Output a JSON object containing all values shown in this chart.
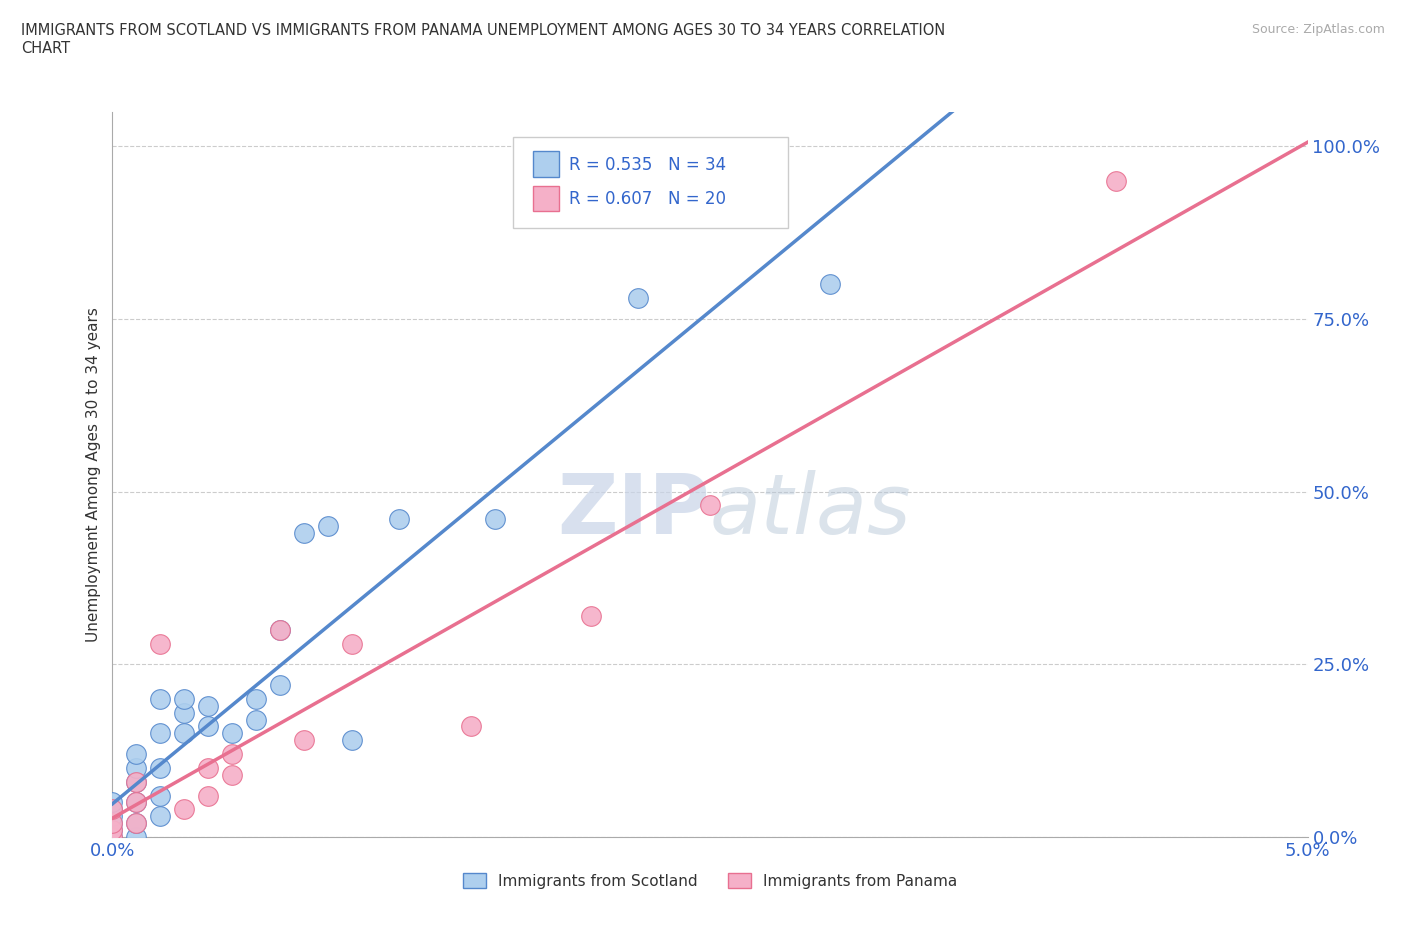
{
  "title": "IMMIGRANTS FROM SCOTLAND VS IMMIGRANTS FROM PANAMA UNEMPLOYMENT AMONG AGES 30 TO 34 YEARS CORRELATION\nCHART",
  "source_text": "Source: ZipAtlas.com",
  "ylabel": "Unemployment Among Ages 30 to 34 years",
  "xlim": [
    0,
    0.05
  ],
  "ylim": [
    0,
    1.05
  ],
  "x_ticks": [
    0.0,
    0.05
  ],
  "x_tick_labels": [
    "0.0%",
    "5.0%"
  ],
  "y_ticks": [
    0.0,
    0.25,
    0.5,
    0.75,
    1.0
  ],
  "y_tick_labels": [
    "0.0%",
    "25.0%",
    "50.0%",
    "75.0%",
    "100.0%"
  ],
  "scotland_color": "#aecfee",
  "panama_color": "#f5b0c8",
  "scotland_R": 0.535,
  "scotland_N": 34,
  "panama_R": 0.607,
  "panama_N": 20,
  "scotland_x": [
    0.0,
    0.0,
    0.0,
    0.0,
    0.0,
    0.0,
    0.001,
    0.001,
    0.001,
    0.001,
    0.001,
    0.001,
    0.002,
    0.002,
    0.002,
    0.002,
    0.002,
    0.003,
    0.003,
    0.003,
    0.004,
    0.004,
    0.005,
    0.006,
    0.006,
    0.007,
    0.007,
    0.008,
    0.009,
    0.01,
    0.012,
    0.016,
    0.022,
    0.03
  ],
  "scotland_y": [
    0.0,
    0.01,
    0.02,
    0.03,
    0.04,
    0.05,
    0.0,
    0.02,
    0.05,
    0.08,
    0.1,
    0.12,
    0.03,
    0.06,
    0.1,
    0.15,
    0.2,
    0.15,
    0.18,
    0.2,
    0.16,
    0.19,
    0.15,
    0.17,
    0.2,
    0.22,
    0.3,
    0.44,
    0.45,
    0.14,
    0.46,
    0.46,
    0.78,
    0.8
  ],
  "panama_x": [
    0.0,
    0.0,
    0.0,
    0.0,
    0.001,
    0.001,
    0.001,
    0.002,
    0.003,
    0.004,
    0.004,
    0.005,
    0.005,
    0.007,
    0.008,
    0.01,
    0.015,
    0.02,
    0.025,
    0.042
  ],
  "panama_y": [
    0.0,
    0.01,
    0.02,
    0.04,
    0.02,
    0.05,
    0.08,
    0.28,
    0.04,
    0.06,
    0.1,
    0.09,
    0.12,
    0.3,
    0.14,
    0.28,
    0.16,
    0.32,
    0.48,
    0.95
  ],
  "background_color": "#ffffff",
  "grid_color": "#cccccc",
  "watermark_color": "#c8d4e8",
  "trendline_scotland_color": "#5588cc",
  "trendline_panama_color": "#e87090"
}
